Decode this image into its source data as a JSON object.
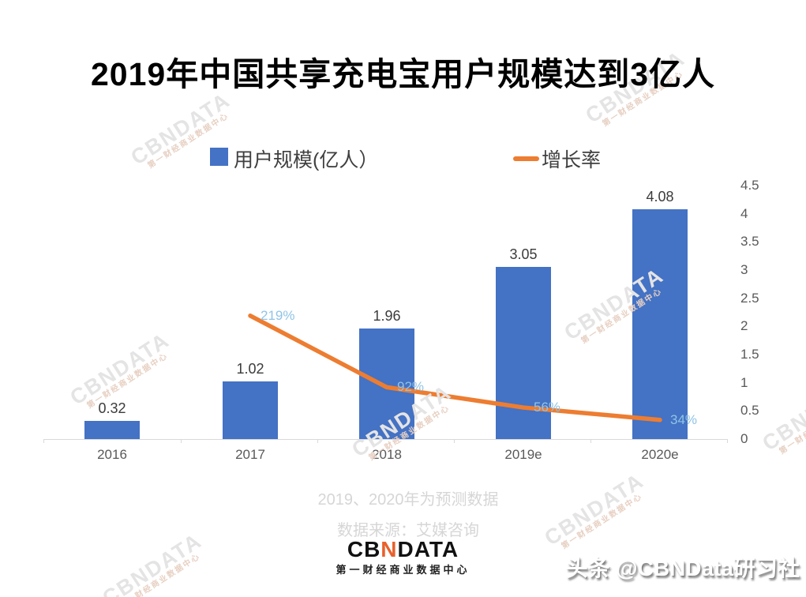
{
  "title": "2019年中国共享充电宝用户规模达到3亿人",
  "legend": {
    "bar_label": "用户规模(亿人）",
    "line_label": "增长率"
  },
  "chart_data": {
    "type": "bar",
    "categories": [
      "2016",
      "2017",
      "2018",
      "2019e",
      "2020e"
    ],
    "series": [
      {
        "name": "用户规模(亿人)",
        "type": "bar",
        "values": [
          0.32,
          1.02,
          1.96,
          3.05,
          4.08
        ],
        "labels": [
          "0.32",
          "1.02",
          "1.96",
          "3.05",
          "4.08"
        ],
        "color": "#4472C4"
      },
      {
        "name": "增长率",
        "type": "line",
        "values": [
          null,
          2.19,
          0.92,
          0.56,
          0.34
        ],
        "labels": [
          null,
          "219%",
          "92%",
          "56%",
          "34%"
        ],
        "color": "#ED7D31",
        "label_color": "#8FC4E6"
      }
    ],
    "title": "2019年中国共享充电宝用户规模达到3亿人",
    "xlabel": "",
    "ylabel": "",
    "y_axis_right": {
      "ticks": [
        "0",
        "0.5",
        "1",
        "1.5",
        "2",
        "2.5",
        "3",
        "3.5",
        "4",
        "4.5"
      ],
      "min": 0,
      "max": 4.5
    },
    "grid": false,
    "legend_position": "top"
  },
  "footer": {
    "note1": "2019、2020年为预测数据",
    "note2": "数据来源：艾媒咨询"
  },
  "logo": {
    "part1": "CB",
    "accent": "N",
    "part2": "DATA",
    "subtitle": "第一财经商业数据中心"
  },
  "credit": "头条 @CBNData研习社",
  "watermark": {
    "line1": "CBNDATA",
    "line2": "第一财经商业数据中心"
  },
  "colors": {
    "bar": "#4472C4",
    "line": "#ED7D31",
    "line_label": "#8FC4E6",
    "logo_accent": "#E8612C"
  }
}
